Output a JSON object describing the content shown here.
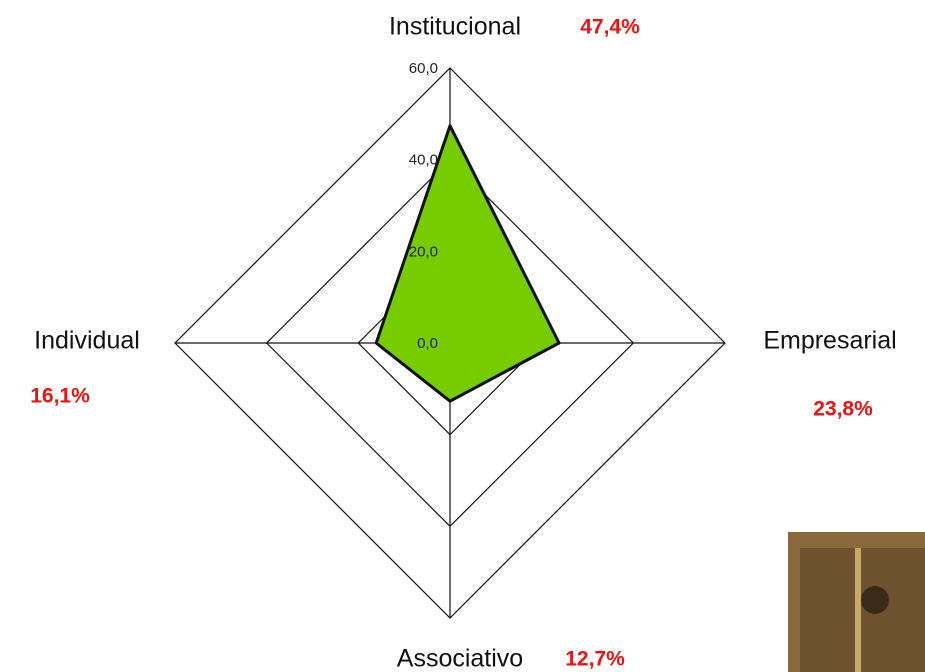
{
  "chart_data": {
    "type": "radar",
    "categories": [
      "Institucional",
      "Empresarial",
      "Associativo",
      "Individual"
    ],
    "values": [
      47.4,
      23.8,
      12.7,
      16.1
    ],
    "value_labels": [
      "47,4%",
      "23,8%",
      "12,7%",
      "16,1%"
    ],
    "color": "#77cc00",
    "rlim": [
      0,
      60
    ],
    "rticks": [
      {
        "value": 0,
        "label": "0,0"
      },
      {
        "value": 20,
        "label": "20,0"
      },
      {
        "value": 40,
        "label": "40,0"
      },
      {
        "value": 60,
        "label": "60,0"
      }
    ],
    "grid": true
  }
}
